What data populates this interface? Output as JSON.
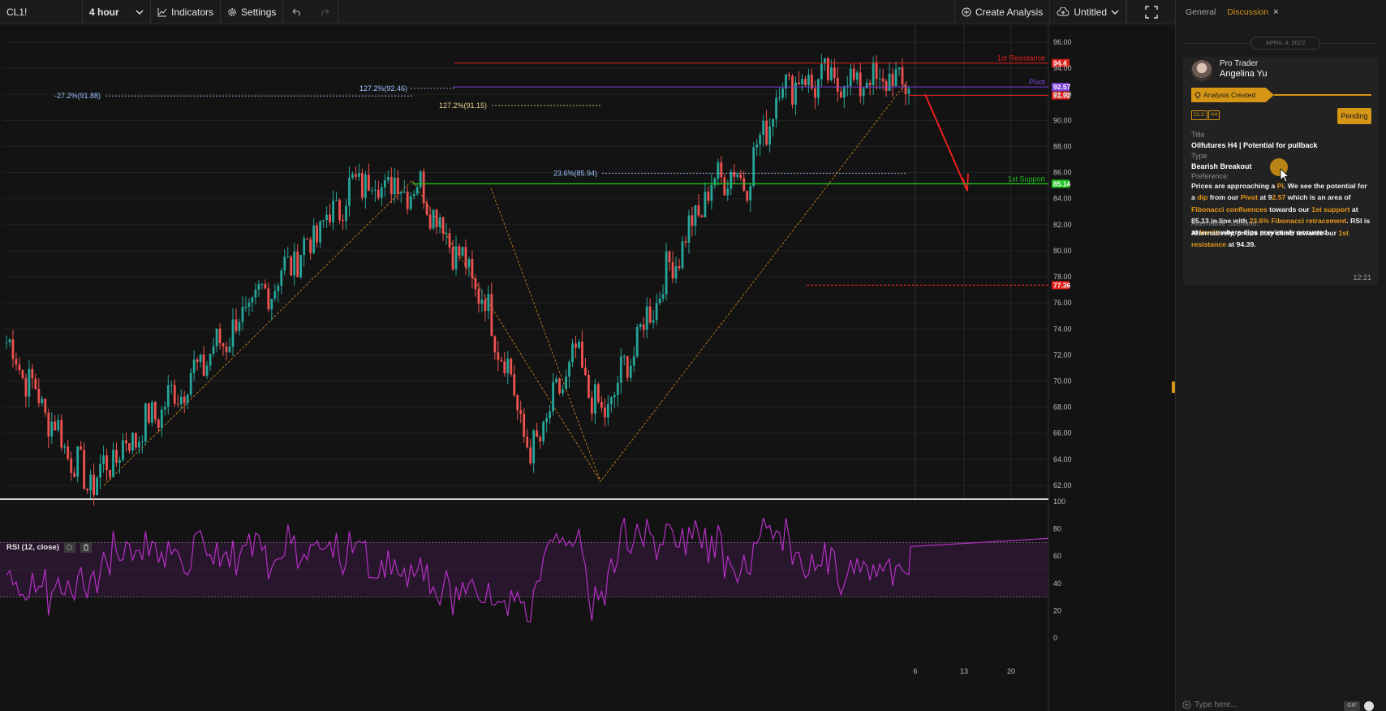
{
  "toolbar": {
    "symbol": "CL1!",
    "interval": "4 hour",
    "indicators_label": "Indicators",
    "settings_label": "Settings",
    "create_analysis_label": "Create Analysis",
    "layout_name": "Untitled"
  },
  "chart_data": {
    "type": "candlestick",
    "price_axis_ticks": [
      "96.00",
      "94.00",
      "92.00",
      "90.00",
      "88.00",
      "86.00",
      "84.00",
      "82.00",
      "80.00",
      "78.00",
      "76.00",
      "74.00",
      "72.00",
      "70.00",
      "68.00",
      "66.00",
      "64.00",
      "62.00"
    ],
    "price_range": [
      61,
      97
    ],
    "time_axis_ticks": [
      "6",
      "13",
      "20"
    ],
    "price_path_keypoints": [
      {
        "x": 0,
        "y": 73
      },
      {
        "x": 0.09,
        "y": 62
      },
      {
        "x": 0.2,
        "y": 70
      },
      {
        "x": 0.34,
        "y": 81
      },
      {
        "x": 0.39,
        "y": 85.4
      },
      {
        "x": 0.46,
        "y": 84.8
      },
      {
        "x": 0.53,
        "y": 76
      },
      {
        "x": 0.56,
        "y": 70
      },
      {
        "x": 0.58,
        "y": 64
      },
      {
        "x": 0.63,
        "y": 72
      },
      {
        "x": 0.66,
        "y": 67
      },
      {
        "x": 0.73,
        "y": 78
      },
      {
        "x": 0.79,
        "y": 86
      },
      {
        "x": 0.82,
        "y": 85.5
      },
      {
        "x": 0.86,
        "y": 93
      }
    ],
    "horizontal_levels": [
      {
        "label": "1st Resistance",
        "price": 94.4,
        "tag": "94.4",
        "color": "#e0201c"
      },
      {
        "label": "Pivot",
        "price": 92.57,
        "tag": "92.57",
        "color": "#7b3fd9"
      },
      {
        "label": "",
        "price": 91.92,
        "tag": "91.92",
        "color": "#e0201c"
      },
      {
        "label": "1st Support",
        "price": 85.14,
        "tag": "85.14",
        "color": "#1fc21f"
      },
      {
        "label": "",
        "price": 77.36,
        "tag": "77.36",
        "color": "#e0201c"
      }
    ],
    "fib_labels": [
      {
        "text": "-27.2%(91.88)",
        "price": 91.88
      },
      {
        "text": "127.2%(92.46)",
        "price": 92.46
      },
      {
        "text": "127.2%(91.15)",
        "price": 91.15
      },
      {
        "text": "23.6%(85.94)",
        "price": 85.94
      }
    ],
    "rsi": {
      "legend": "RSI (12, close)",
      "axis_ticks": [
        "100",
        "80",
        "60",
        "40",
        "20",
        "0"
      ],
      "overbought": 70,
      "oversold": 30
    }
  },
  "panel": {
    "tabs": [
      {
        "label": "General"
      },
      {
        "label": "Discussion"
      }
    ],
    "date": "APRIL 4, 2022",
    "card": {
      "role": "Pro Trader",
      "author": "Angelina Yu",
      "tag": "Analysis Created",
      "chips": [
        "CL1!",
        "H4"
      ],
      "status": "Pending",
      "title_label": "Title",
      "title_value": "Oilfutures H4 | Potential for pullback",
      "type_label": "Type",
      "type_value": "Bearish Breakout",
      "preference_label": "Preference:",
      "alt_label": "Alternative Scenario:",
      "time": "12:21"
    },
    "compose_placeholder": "Type here...",
    "gif_label": "GIF"
  },
  "colors": {
    "accent": "#d59515",
    "up_candle": "#26a69a",
    "down_candle": "#ef5350",
    "rsi_line": "#b62fc6"
  }
}
